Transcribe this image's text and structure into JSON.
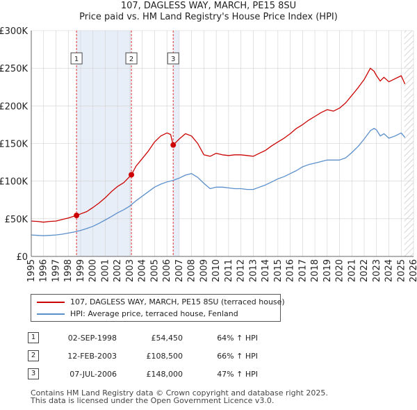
{
  "header": {
    "title_line1": "107, DAGLESS WAY, MARCH, PE15 8SU",
    "title_line2": "Price paid vs. HM Land Registry's House Price Index (HPI)"
  },
  "colors": {
    "property": "#cc0000",
    "hpi": "#5b8fcc",
    "shade": "#e8eef8",
    "grid": "#d0d0d0",
    "marker_line": "#dd3333"
  },
  "legend": {
    "property_label": "107, DAGLESS WAY, MARCH, PE15 8SU (terraced house)",
    "hpi_label": "HPI: Average price, terraced house, Fenland"
  },
  "transactions": [
    {
      "num": "1",
      "date": "02-SEP-1998",
      "price": "£54,450",
      "hpi": "64% ↑ HPI"
    },
    {
      "num": "2",
      "date": "12-FEB-2003",
      "price": "£108,500",
      "hpi": "66% ↑ HPI"
    },
    {
      "num": "3",
      "date": "07-JUL-2006",
      "price": "£148,000",
      "hpi": "47% ↑ HPI"
    }
  ],
  "footer": {
    "line1": "Contains HM Land Registry data © Crown copyright and database right 2025.",
    "line2": "This data is licensed under the Open Government Licence v3.0."
  },
  "chart_data": {
    "type": "line",
    "title": "Price paid vs. HM Land Registry's House Price Index (HPI)",
    "xlim": [
      1995,
      2026
    ],
    "ylim": [
      0,
      300000
    ],
    "x_ticks": [
      1995,
      1996,
      1997,
      1998,
      1999,
      2000,
      2001,
      2002,
      2003,
      2004,
      2005,
      2006,
      2007,
      2008,
      2009,
      2010,
      2011,
      2012,
      2013,
      2014,
      2015,
      2016,
      2017,
      2018,
      2019,
      2020,
      2021,
      2022,
      2023,
      2024,
      2025,
      2026
    ],
    "x_tick_labels": [
      "1995",
      "1996",
      "1997",
      "1998",
      "1999",
      "2000",
      "2001",
      "2002",
      "2003",
      "2004",
      "2005",
      "2006",
      "2007",
      "2008",
      "2009",
      "2010",
      "2011",
      "2012",
      "2013",
      "2014",
      "2015",
      "2016",
      "2017",
      "2018",
      "2019",
      "2020",
      "2021",
      "2022",
      "2023",
      "2024",
      "2025",
      "2026"
    ],
    "y_ticks": [
      0,
      50000,
      100000,
      150000,
      200000,
      250000,
      300000
    ],
    "y_tick_labels": [
      "£0",
      "£50K",
      "£100K",
      "£150K",
      "£200K",
      "£250K",
      "£300K"
    ],
    "shaded_ranges": [
      [
        1998.67,
        2003.12
      ],
      [
        2006.51,
        2007.0
      ]
    ],
    "hatched_range": [
      2025.25,
      2026
    ],
    "sales": [
      {
        "label": "1",
        "x": 1998.67,
        "y": 54450
      },
      {
        "label": "2",
        "x": 2003.12,
        "y": 108500
      },
      {
        "label": "3",
        "x": 2006.51,
        "y": 148000
      }
    ],
    "series": [
      {
        "name": "107, DAGLESS WAY, MARCH, PE15 8SU (terraced house)",
        "x": [
          1995.0,
          1995.5,
          1996.0,
          1996.5,
          1997.0,
          1997.5,
          1998.0,
          1998.67,
          1999.0,
          1999.5,
          2000.0,
          2000.5,
          2001.0,
          2001.5,
          2002.0,
          2002.5,
          2003.12,
          2003.5,
          2004.0,
          2004.5,
          2005.0,
          2005.5,
          2006.0,
          2006.3,
          2006.51,
          2007.0,
          2007.5,
          2008.0,
          2008.5,
          2009.0,
          2009.5,
          2010.0,
          2010.5,
          2011.0,
          2011.5,
          2012.0,
          2012.5,
          2013.0,
          2013.5,
          2014.0,
          2014.5,
          2015.0,
          2015.5,
          2016.0,
          2016.5,
          2017.0,
          2017.5,
          2018.0,
          2018.5,
          2019.0,
          2019.5,
          2020.0,
          2020.5,
          2021.0,
          2021.5,
          2022.0,
          2022.5,
          2022.8,
          2023.0,
          2023.3,
          2023.6,
          2024.0,
          2024.5,
          2025.0,
          2025.3
        ],
        "y": [
          47000,
          46500,
          45500,
          46500,
          47000,
          49000,
          51000,
          54450,
          56500,
          59500,
          65000,
          71000,
          78000,
          86000,
          93000,
          98000,
          108500,
          120000,
          130000,
          140000,
          152000,
          160000,
          164000,
          162000,
          148000,
          156000,
          163000,
          160000,
          150000,
          135000,
          133000,
          137000,
          135000,
          134000,
          135000,
          135000,
          134000,
          133000,
          137000,
          141000,
          147000,
          152000,
          157000,
          163000,
          170000,
          175000,
          181000,
          186000,
          191000,
          195000,
          193000,
          197000,
          204000,
          214000,
          224000,
          235000,
          250000,
          246000,
          240000,
          233000,
          238000,
          232000,
          236000,
          240000,
          229000
        ]
      },
      {
        "name": "HPI: Average price, terraced house, Fenland",
        "x": [
          1995.0,
          1995.5,
          1996.0,
          1996.5,
          1997.0,
          1997.5,
          1998.0,
          1998.5,
          1999.0,
          1999.5,
          2000.0,
          2000.5,
          2001.0,
          2001.5,
          2002.0,
          2002.5,
          2003.0,
          2003.5,
          2004.0,
          2004.5,
          2005.0,
          2005.5,
          2006.0,
          2006.5,
          2007.0,
          2007.5,
          2008.0,
          2008.5,
          2009.0,
          2009.5,
          2010.0,
          2010.5,
          2011.0,
          2011.5,
          2012.0,
          2012.5,
          2013.0,
          2013.5,
          2014.0,
          2014.5,
          2015.0,
          2015.5,
          2016.0,
          2016.5,
          2017.0,
          2017.5,
          2018.0,
          2018.5,
          2019.0,
          2019.5,
          2020.0,
          2020.5,
          2021.0,
          2021.5,
          2022.0,
          2022.5,
          2022.8,
          2023.0,
          2023.3,
          2023.6,
          2024.0,
          2024.5,
          2025.0,
          2025.3
        ],
        "y": [
          28500,
          28000,
          27500,
          28000,
          28500,
          29500,
          31000,
          32500,
          34500,
          37000,
          40000,
          44000,
          48500,
          53000,
          58000,
          62000,
          67000,
          74000,
          80000,
          86000,
          92000,
          96000,
          99000,
          101000,
          104000,
          108000,
          110000,
          105000,
          97000,
          90000,
          92000,
          92000,
          91000,
          90000,
          90000,
          89000,
          89000,
          92000,
          95000,
          99000,
          103000,
          106000,
          110000,
          114000,
          119000,
          122000,
          124000,
          126000,
          128000,
          128000,
          128000,
          131000,
          138000,
          146000,
          156000,
          167000,
          170000,
          168000,
          160000,
          163000,
          157000,
          160000,
          164000,
          158000
        ]
      }
    ]
  }
}
